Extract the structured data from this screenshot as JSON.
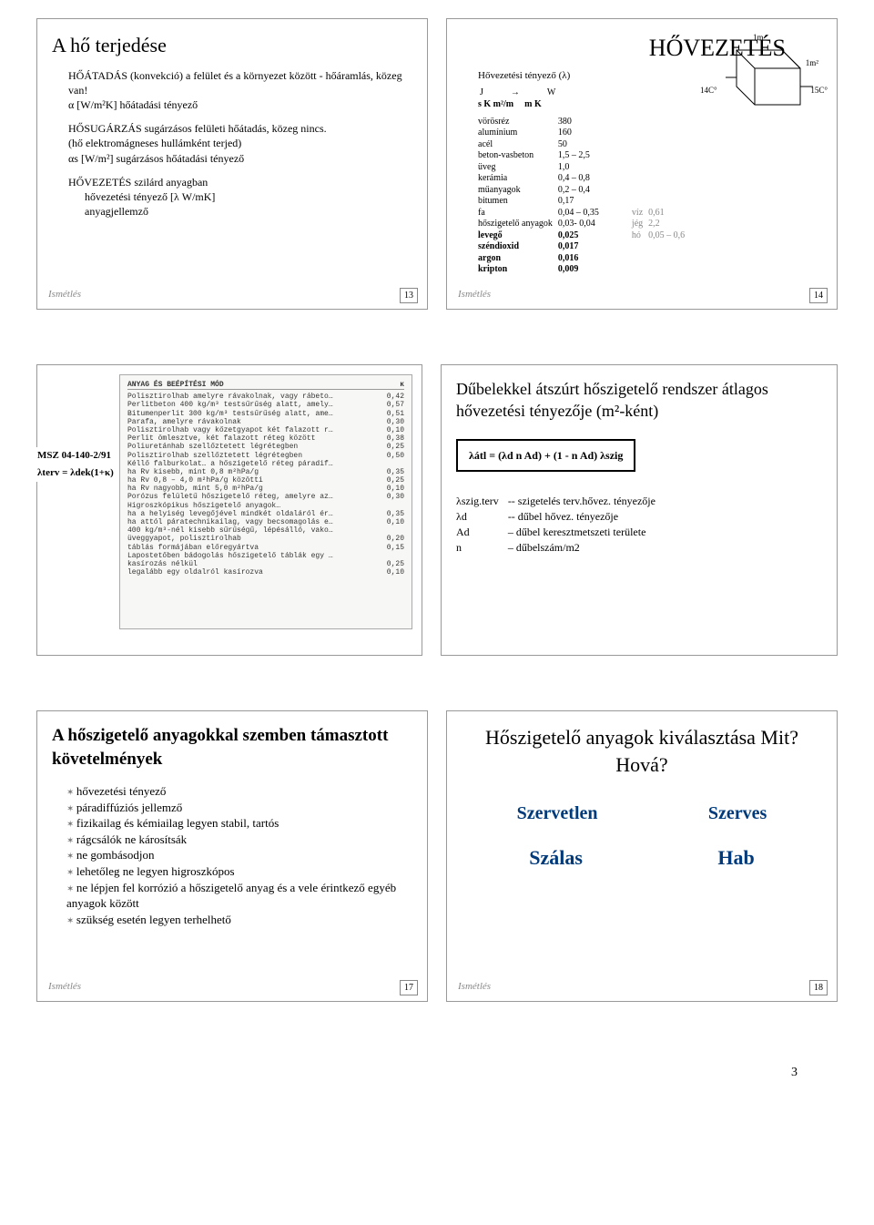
{
  "slide13": {
    "title": "A hő terjedése",
    "lines": {
      "l1": "HŐÁTADÁS (konvekció) a felület és a környezet között - hőáramlás, közeg van!",
      "l2": "α  [W/m²K]  hőátadási tényező",
      "l3": "HŐSUGÁRZÁS sugárzásos felületi hőátadás, közeg nincs.",
      "l4": "(hő elektromágneses hullámként terjed)",
      "l5": "αs [W/m²]  sugárzásos hőátadási tényező",
      "l6": "HŐVEZETÉS szilárd anyagban",
      "l7": "hővezetési tényező  [λ W/mK]",
      "l8": "anyagjellemző"
    },
    "footer": "Ismétlés",
    "page": "13"
  },
  "slide14": {
    "title": "HŐVEZETÉS",
    "subtitle": "Hővezetési tényező (λ)",
    "unit_left_top": "J",
    "unit_right_top": "W",
    "unit_left": "s K m²/m",
    "unit_right": "m K",
    "materials": [
      [
        "vörösréz",
        "380"
      ],
      [
        "alumínium",
        "160"
      ],
      [
        "acél",
        "50"
      ],
      [
        "",
        ""
      ],
      [
        "beton-vasbeton",
        "1,5 – 2,5"
      ],
      [
        "üveg",
        "1,0"
      ],
      [
        "kerámia",
        "0,4 – 0,8"
      ],
      [
        "műanyagok",
        "0,2 – 0,4"
      ],
      [
        "bitumen",
        "0,17"
      ],
      [
        "fa",
        "0,04 – 0,35"
      ],
      [
        "hőszigetelő anyagok",
        "0,03- 0,04"
      ],
      [
        "",
        ""
      ],
      [
        "levegő",
        "0,025"
      ],
      [
        "széndioxid",
        "0,017"
      ],
      [
        "argon",
        "0,016"
      ],
      [
        "kripton",
        "0,009"
      ]
    ],
    "right_table": [
      [
        "víz",
        "0,61"
      ],
      [
        "jég",
        "2,2"
      ],
      [
        "hó",
        "0,05 – 0,6"
      ]
    ],
    "cube": {
      "m1": "1m",
      "m2": "1m²",
      "t1": "14C°",
      "t2": "15C°"
    },
    "footer": "Ismétlés",
    "page": "14"
  },
  "slide15": {
    "msz": "MSZ 04-140-2/91",
    "formula": "λterv = λdek(1+κ)",
    "scan_title": "ANYAG ÉS BEÉPÍTÉSI MÓD",
    "scan_kappa": "κ",
    "scan_rows": [
      [
        "Polisztirolhab amelyre rávakolnak, vagy rábetonoznak",
        "0,42"
      ],
      [
        "Perlitbeton 400 kg/m³ testsűrűség alatt, amelyre rábetonoznak",
        "0,57"
      ],
      [
        "Bitumenperlit 300 kg/m³ testsűrűség alatt, amelyre rábetonoznak",
        "0,51"
      ],
      [
        "Parafa, amelyre rávakolnak",
        "0,30"
      ],
      [
        "Polisztirolhab vagy kőzetgyapot két falazott réteg között",
        "0,10"
      ],
      [
        "Perlit ömlesztve, két falazott réteg között",
        "0,38"
      ],
      [
        "Poliuretánhab  szellőztetett légrétegben",
        "0,25"
      ],
      [
        "Polisztirolhab  szellőztetett légrétegben",
        "0,50"
      ],
      [
        "Kéllő falburkolat… a hőszigetelő réteg páradifúzós ellendől függően:",
        ""
      ],
      [
        "    ha Rv kisebb, mint 0,8 m²hPa/g",
        "0,35"
      ],
      [
        "    ha Rv  0,8 – 4,0 m²hPa/g közötti",
        "0,25"
      ],
      [
        "    ha Rv nagyobb, mint 5,0 m²hPa/g",
        "0,10"
      ],
      [
        "Porózus felületű hőszigetelő réteg, amelyre az építő vagy gyártás során habarcs-ragasztó vagy betonréteg hordanak fel",
        "0,30"
      ],
      [
        "Higroszkópikus hőszigetelő anyagok…",
        ""
      ],
      [
        "    ha a helyiség levegőjével mindkét oldaláról érintkezik",
        "0,35"
      ],
      [
        "    ha attól páratechnikailag, vagy becsomagolás elválasztja el",
        "0,10"
      ],
      [
        "400 kg/m³-nél kisebb sűrűségű, lépésálló, vakolatlan, zsalubkövek…",
        ""
      ],
      [
        "    üveggyapot, polisztirolhab",
        "0,20"
      ],
      [
        "    táblás formájában előregyártva",
        "0,15"
      ],
      [
        "Lapostetőben bádogolás hőszigetelő táblák egy rétegben, tompa ütközéssel lerakva:",
        ""
      ],
      [
        "    kasírozás nélkül",
        "0,25"
      ],
      [
        "    legalább egy oldalról kasírozva",
        "0,10"
      ]
    ]
  },
  "slide16": {
    "title": "Dűbelekkel átszúrt hőszigetelő rendszer átlagos hővezetési tényezője (m²-ként)",
    "formula": "λátl = (λd  n  Ad)  + (1  -  n  Ad) λszig",
    "legend": [
      [
        "λszig.terv",
        "-- szigetelés terv.hővez. tényezője"
      ],
      [
        "λd",
        "-- dűbel hővez. tényezője"
      ],
      [
        "Ad",
        "– dűbel keresztmetszeti területe"
      ],
      [
        "n",
        "– dűbelszám/m2"
      ]
    ]
  },
  "slide17": {
    "title": "A hőszigetelő anyagokkal szemben támasztott követelmények",
    "items": [
      "hővezetési tényező",
      "páradiffúziós jellemző",
      "fizikailag és kémiailag legyen stabil, tartós",
      "rágcsálók ne károsítsák",
      "ne gombásodjon",
      "lehetőleg ne legyen higroszkópos",
      "ne lépjen fel korrózió a hőszigetelő anyag és a vele érintkező egyéb anyagok között",
      "szükség esetén legyen terhelhető"
    ],
    "footer": "Ismétlés",
    "page": "17"
  },
  "slide18": {
    "title": "Hőszigetelő anyagok kiválasztása Mit? Hová?",
    "h1": "Szervetlen",
    "h2": "Szerves",
    "r1": "Szálas",
    "r2": "Hab",
    "footer": "Ismétlés",
    "page": "18"
  },
  "pagefoot": "3"
}
